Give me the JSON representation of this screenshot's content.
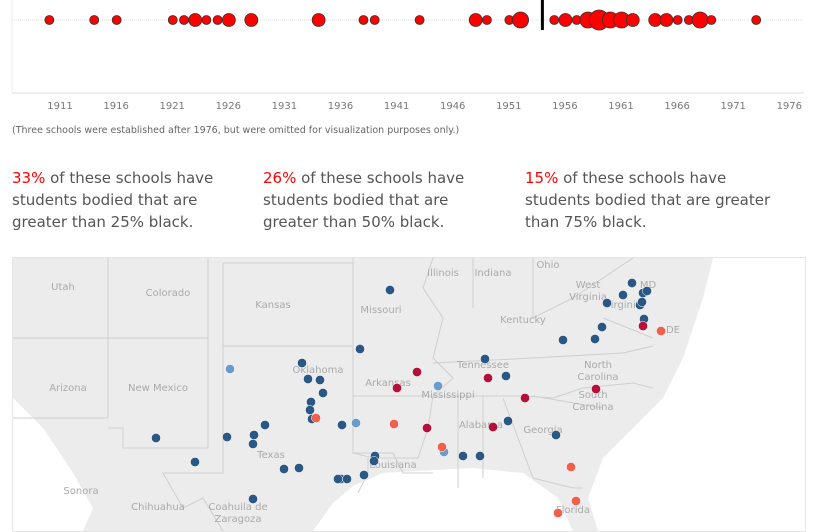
{
  "chart_data": {
    "type": "scatter",
    "xlabel": "",
    "ylabel": "",
    "xlim": [
      1908,
      1977
    ],
    "x_ticks": [
      "1911",
      "1916",
      "1921",
      "1926",
      "1931",
      "1936",
      "1941",
      "1946",
      "1951",
      "1956",
      "1961",
      "1966",
      "1971",
      "1976"
    ],
    "points": [
      {
        "year": 1910,
        "count": 1
      },
      {
        "year": 1914,
        "count": 1
      },
      {
        "year": 1916,
        "count": 1
      },
      {
        "year": 1921,
        "count": 1
      },
      {
        "year": 1922,
        "count": 1
      },
      {
        "year": 1923,
        "count": 2
      },
      {
        "year": 1924,
        "count": 1
      },
      {
        "year": 1925,
        "count": 1
      },
      {
        "year": 1926,
        "count": 2
      },
      {
        "year": 1928,
        "count": 2
      },
      {
        "year": 1934,
        "count": 2
      },
      {
        "year": 1938,
        "count": 1
      },
      {
        "year": 1939,
        "count": 1
      },
      {
        "year": 1943,
        "count": 1
      },
      {
        "year": 1948,
        "count": 2
      },
      {
        "year": 1949,
        "count": 1
      },
      {
        "year": 1951,
        "count": 1
      },
      {
        "year": 1952,
        "count": 3
      },
      {
        "year": 1955,
        "count": 1
      },
      {
        "year": 1956,
        "count": 2
      },
      {
        "year": 1957,
        "count": 1
      },
      {
        "year": 1958,
        "count": 3
      },
      {
        "year": 1959,
        "count": 4
      },
      {
        "year": 1960,
        "count": 3
      },
      {
        "year": 1961,
        "count": 3
      },
      {
        "year": 1962,
        "count": 2
      },
      {
        "year": 1964,
        "count": 2
      },
      {
        "year": 1965,
        "count": 2
      },
      {
        "year": 1966,
        "count": 1
      },
      {
        "year": 1967,
        "count": 1
      },
      {
        "year": 1968,
        "count": 3
      },
      {
        "year": 1969,
        "count": 1
      },
      {
        "year": 1973,
        "count": 1
      }
    ],
    "reference_line_year": 1954,
    "point_color": "#ff0000"
  },
  "note": "(Three schools were established after 1976, but were omitted for visualization purposes only.)",
  "stats": [
    {
      "pct": "33%",
      "text": " of these schools have students bodied that are greater than 25% black."
    },
    {
      "pct": "26%",
      "text": " of these schools have students bodied that are greater than 50% black."
    },
    {
      "pct": "15%",
      "text": " of these schools have students bodied that are greater than 75% black."
    }
  ],
  "map": {
    "labels": [
      "Utah",
      "Colorado",
      "Kansas",
      "Missouri",
      "Illinois",
      "Indiana",
      "Ohio",
      "Kentucky",
      "West Virginia",
      "Virginia",
      "MD",
      "DE",
      "Tennessee",
      "North Carolina",
      "South Carolina",
      "Georgia",
      "Alabama",
      "Mississippi",
      "Arkansas",
      "Oklahoma",
      "Texas",
      "Louisiana",
      "Florida",
      "Arizona",
      "New Mexico",
      "Sonora",
      "Chihuahua",
      "Coahuila de Zaragoza"
    ],
    "colors": {
      "under25": "#2a5783",
      "low": "#6a9ccb",
      "high": "#f0604d",
      "over75": "#b5103a",
      "land": "#ececec",
      "border": "#cfcfcf"
    }
  }
}
